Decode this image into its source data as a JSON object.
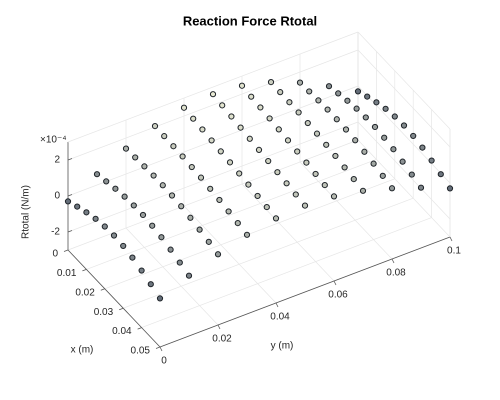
{
  "chart_data": {
    "type": "surface",
    "title": "Reaction Force Rtotal",
    "xlabel": "x (m)",
    "ylabel": "y (m)",
    "zlabel": "Rtotal (N/m)",
    "z_multiplier": "×10⁻⁴",
    "x": [
      0,
      0.005,
      0.01,
      0.015,
      0.02,
      0.025,
      0.03,
      0.035,
      0.04,
      0.045,
      0.05
    ],
    "y": [
      0,
      0.01,
      0.02,
      0.03,
      0.04,
      0.05,
      0.06,
      0.07,
      0.08,
      0.09,
      0.1
    ],
    "z": [
      [
        -0.3,
        0.6,
        1.41,
        2.05,
        2.46,
        2.6,
        2.46,
        2.05,
        1.41,
        0.6,
        -0.3
      ],
      [
        -0.05,
        0.74,
        1.46,
        2.03,
        2.39,
        2.52,
        2.39,
        2.03,
        1.46,
        0.74,
        -0.05
      ],
      [
        0.17,
        0.87,
        1.5,
        2.01,
        2.33,
        2.44,
        2.33,
        2.01,
        1.5,
        0.87,
        0.17
      ],
      [
        0.35,
        0.97,
        1.53,
        1.98,
        2.26,
        2.36,
        2.26,
        1.98,
        1.53,
        0.97,
        0.35
      ],
      [
        0.46,
        1.02,
        1.53,
        1.93,
        2.19,
        2.28,
        2.19,
        1.93,
        1.53,
        1.02,
        0.46
      ],
      [
        0.5,
        1.03,
        1.5,
        1.88,
        2.12,
        2.2,
        2.12,
        1.88,
        1.5,
        1.03,
        0.5
      ],
      [
        0.46,
        0.97,
        1.44,
        1.8,
        2.04,
        2.12,
        2.04,
        1.8,
        1.44,
        0.97,
        0.46
      ],
      [
        0.35,
        0.87,
        1.34,
        1.72,
        1.96,
        2.04,
        1.96,
        1.72,
        1.34,
        0.87,
        0.35
      ],
      [
        0.17,
        0.72,
        1.22,
        1.62,
        1.87,
        1.96,
        1.87,
        1.62,
        1.22,
        0.72,
        0.17
      ],
      [
        -0.05,
        0.54,
        1.08,
        1.51,
        1.79,
        1.88,
        1.79,
        1.51,
        1.08,
        0.54,
        -0.05
      ],
      [
        -0.3,
        0.35,
        0.93,
        1.4,
        1.7,
        1.8,
        1.7,
        1.4,
        0.93,
        0.35,
        -0.3
      ]
    ],
    "xlim": [
      0,
      0.05
    ],
    "ylim": [
      0,
      0.1
    ],
    "zlim": [
      -3,
      3
    ],
    "xticks": [
      0,
      0.01,
      0.02,
      0.03,
      0.04,
      0.05
    ],
    "yticks": [
      0,
      0.02,
      0.04,
      0.06,
      0.08,
      0.1
    ],
    "zticks": [
      -2,
      0,
      2
    ],
    "grid": true,
    "marker_edge_color": "#1e2328"
  }
}
